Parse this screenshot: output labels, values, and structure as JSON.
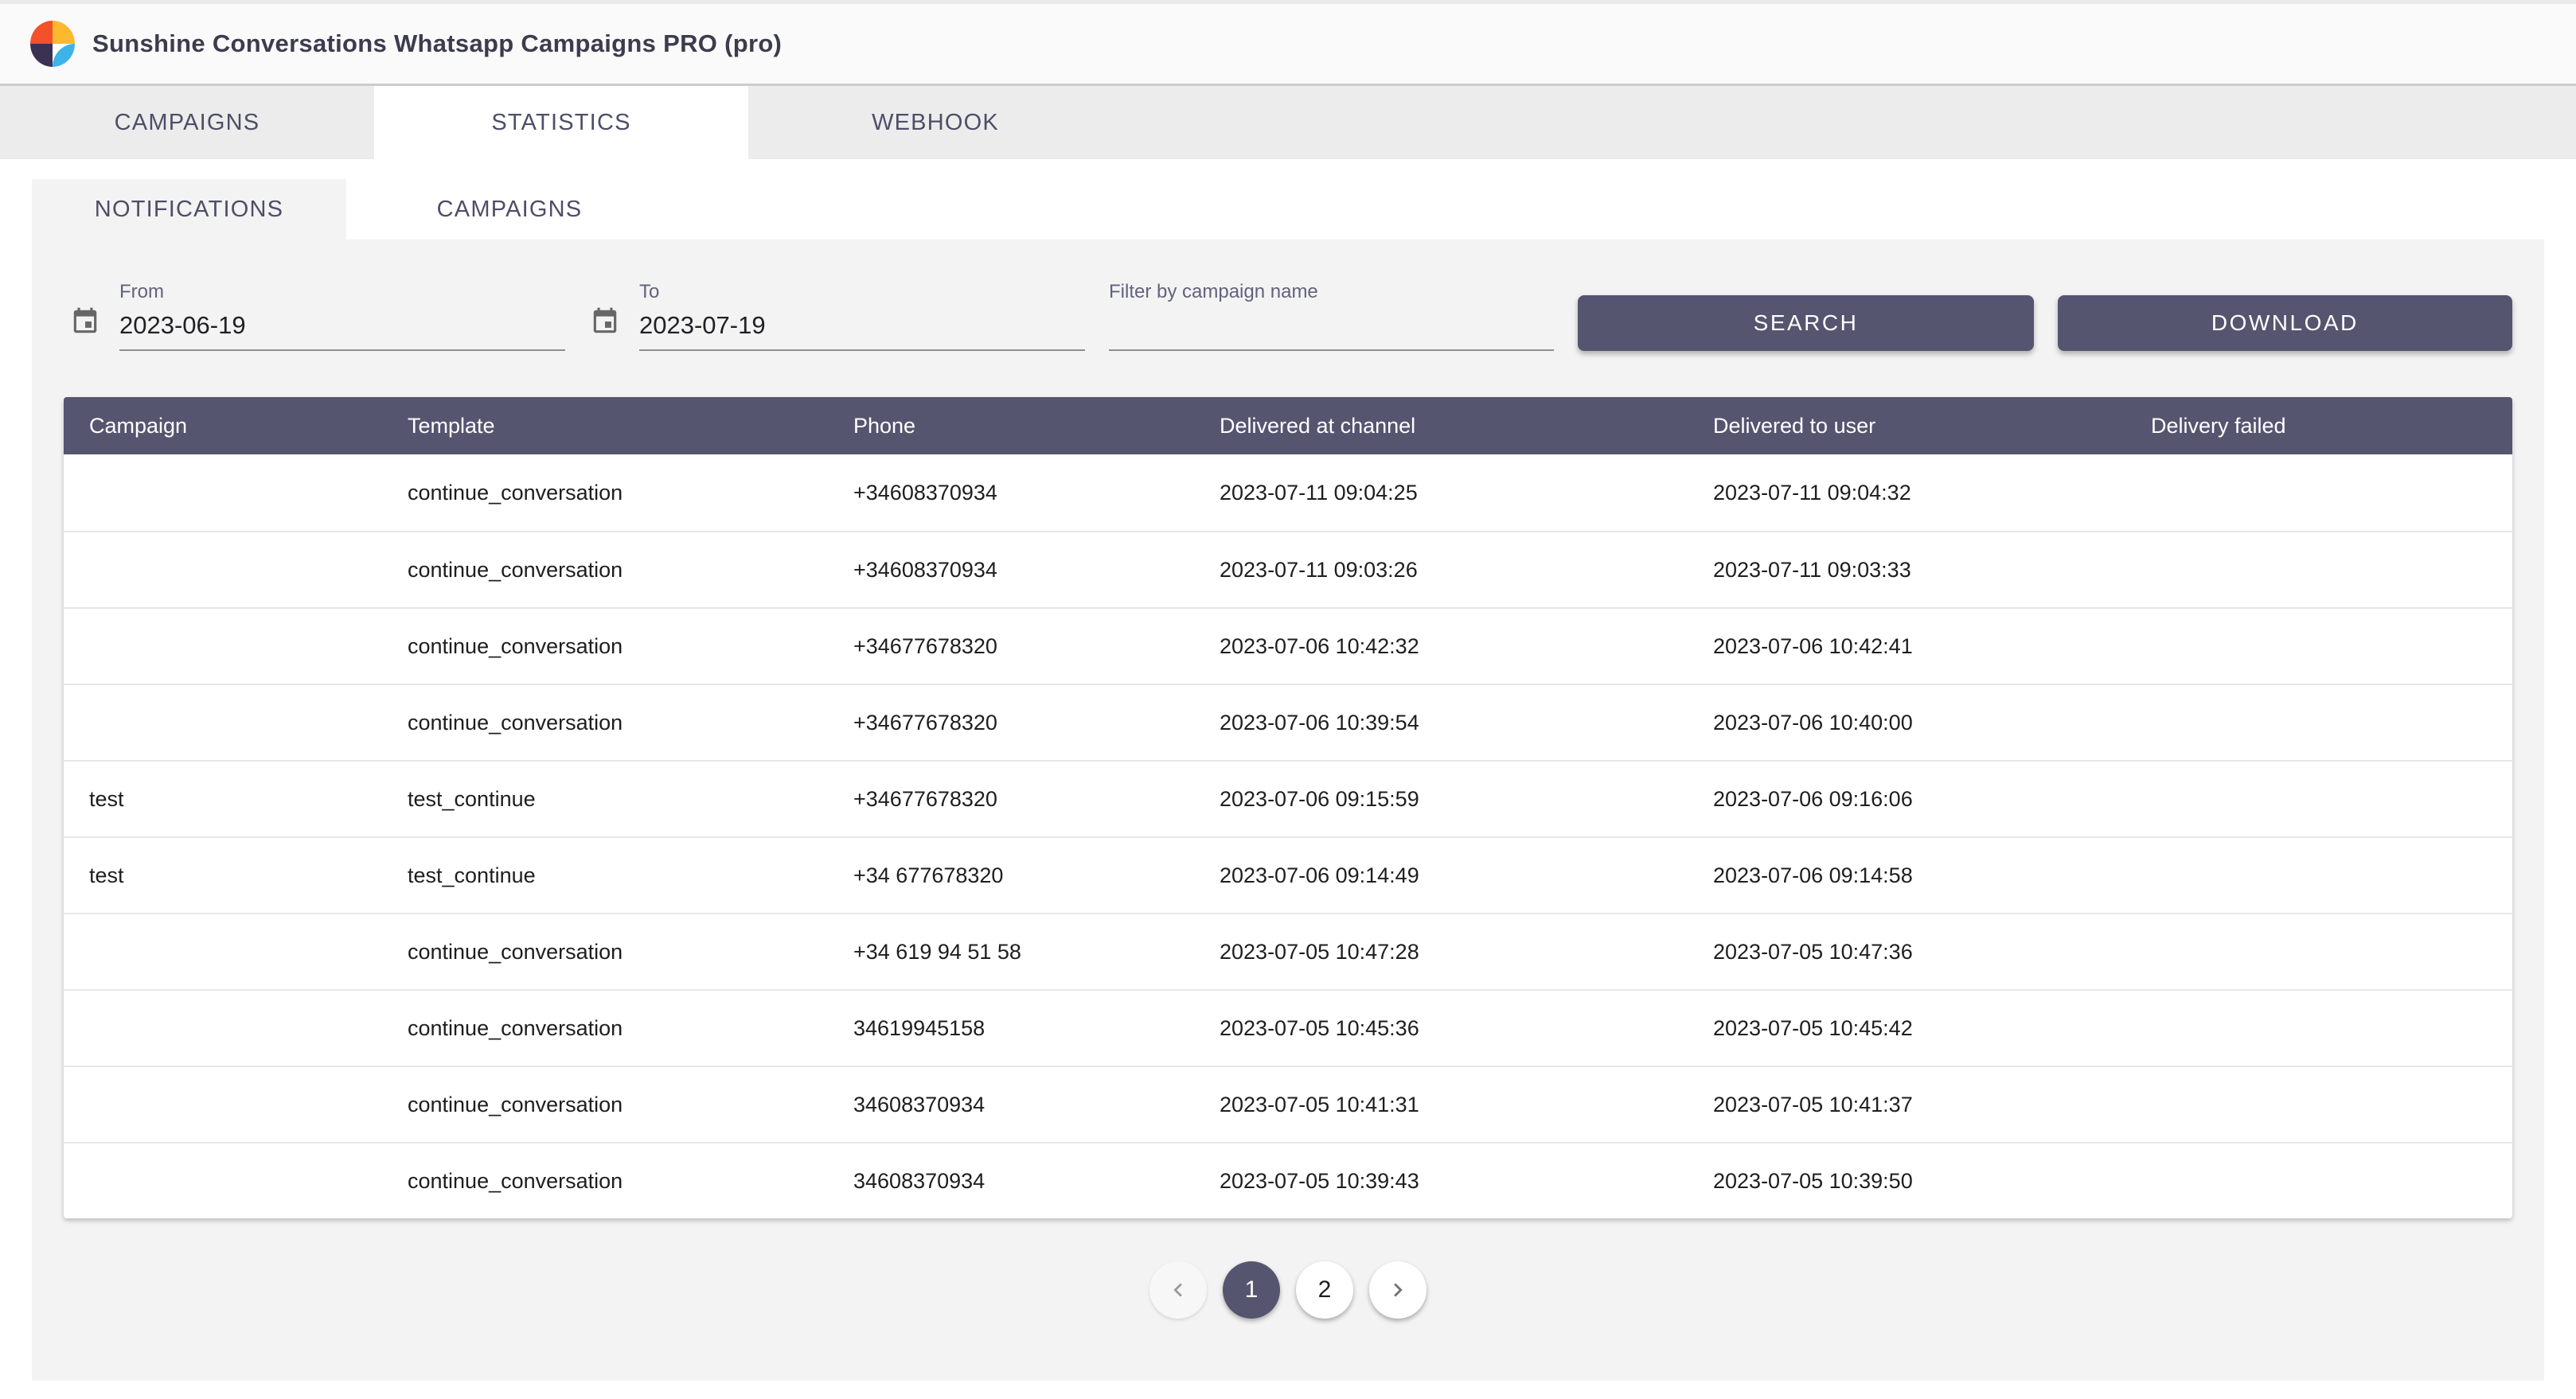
{
  "header": {
    "title": "Sunshine Conversations Whatsapp Campaigns PRO (pro)"
  },
  "tabs": {
    "items": [
      "CAMPAIGNS",
      "STATISTICS",
      "WEBHOOK"
    ],
    "active": "STATISTICS"
  },
  "subtabs": {
    "items": [
      "NOTIFICATIONS",
      "CAMPAIGNS"
    ],
    "active": "NOTIFICATIONS"
  },
  "filters": {
    "from": {
      "label": "From",
      "value": "2023-06-19"
    },
    "to": {
      "label": "To",
      "value": "2023-07-19"
    },
    "campaign_filter": {
      "label": "Filter by campaign name",
      "value": ""
    },
    "search_label": "SEARCH",
    "download_label": "DOWNLOAD"
  },
  "table": {
    "columns": [
      "Campaign",
      "Template",
      "Phone",
      "Delivered at channel",
      "Delivered to user",
      "Delivery failed"
    ],
    "rows": [
      {
        "campaign": "",
        "template": "continue_conversation",
        "phone": "+34608370934",
        "delivered_at_channel": "2023-07-11 09:04:25",
        "delivered_to_user": "2023-07-11 09:04:32",
        "delivery_failed": ""
      },
      {
        "campaign": "",
        "template": "continue_conversation",
        "phone": "+34608370934",
        "delivered_at_channel": "2023-07-11 09:03:26",
        "delivered_to_user": "2023-07-11 09:03:33",
        "delivery_failed": ""
      },
      {
        "campaign": "",
        "template": "continue_conversation",
        "phone": "+34677678320",
        "delivered_at_channel": "2023-07-06 10:42:32",
        "delivered_to_user": "2023-07-06 10:42:41",
        "delivery_failed": ""
      },
      {
        "campaign": "",
        "template": "continue_conversation",
        "phone": "+34677678320",
        "delivered_at_channel": "2023-07-06 10:39:54",
        "delivered_to_user": "2023-07-06 10:40:00",
        "delivery_failed": ""
      },
      {
        "campaign": "test",
        "template": "test_continue",
        "phone": "+34677678320",
        "delivered_at_channel": "2023-07-06 09:15:59",
        "delivered_to_user": "2023-07-06 09:16:06",
        "delivery_failed": ""
      },
      {
        "campaign": "test",
        "template": "test_continue",
        "phone": "+34 677678320",
        "delivered_at_channel": "2023-07-06 09:14:49",
        "delivered_to_user": "2023-07-06 09:14:58",
        "delivery_failed": ""
      },
      {
        "campaign": "",
        "template": "continue_conversation",
        "phone": "+34 619 94 51 58",
        "delivered_at_channel": "2023-07-05 10:47:28",
        "delivered_to_user": "2023-07-05 10:47:36",
        "delivery_failed": ""
      },
      {
        "campaign": "",
        "template": "continue_conversation",
        "phone": "34619945158",
        "delivered_at_channel": "2023-07-05 10:45:36",
        "delivered_to_user": "2023-07-05 10:45:42",
        "delivery_failed": ""
      },
      {
        "campaign": "",
        "template": "continue_conversation",
        "phone": "34608370934",
        "delivered_at_channel": "2023-07-05 10:41:31",
        "delivered_to_user": "2023-07-05 10:41:37",
        "delivery_failed": ""
      },
      {
        "campaign": "",
        "template": "continue_conversation",
        "phone": "34608370934",
        "delivered_at_channel": "2023-07-05 10:39:43",
        "delivered_to_user": "2023-07-05 10:39:50",
        "delivery_failed": ""
      }
    ]
  },
  "pagination": {
    "pages": [
      "1",
      "2"
    ],
    "active": "1"
  },
  "colors": {
    "accent": "#565570",
    "panel_bg": "#f3f3f3",
    "tabbar_bg": "#ececec",
    "header_bg": "#fafafa",
    "logo_red": "#f4502a",
    "logo_yellow": "#fdb92e",
    "logo_navy": "#3b3153",
    "logo_blue": "#3cb4e7"
  }
}
